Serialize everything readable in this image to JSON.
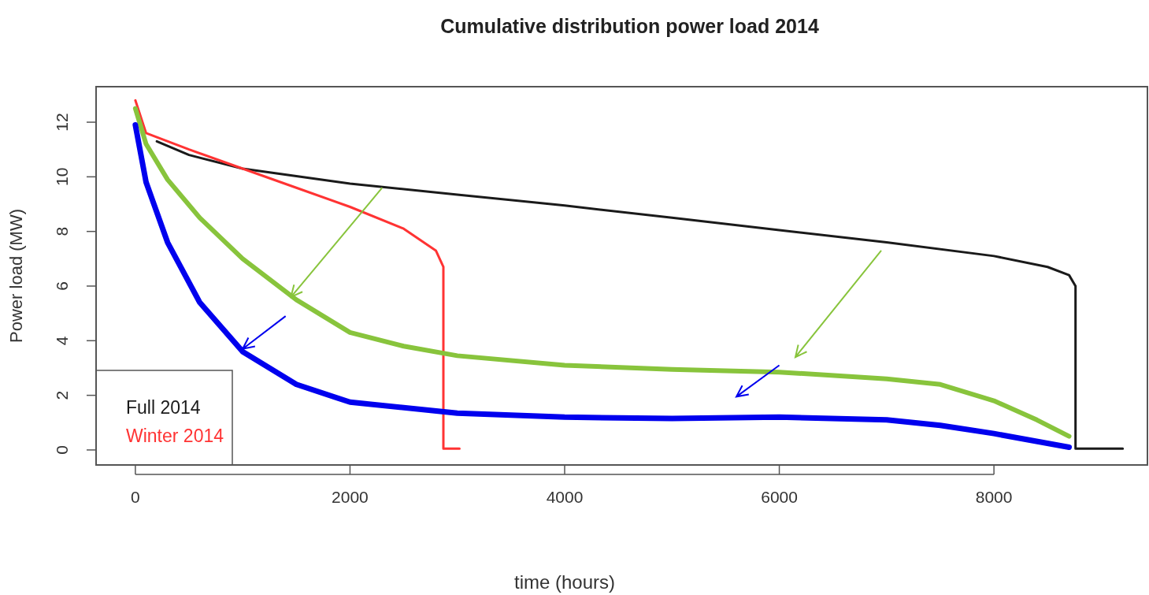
{
  "chart_data": {
    "type": "line",
    "title": "Cumulative distribution power load 2014",
    "xlabel": "time (hours)",
    "ylabel": "Power load (MW)",
    "xlim": [
      -366,
      9430
    ],
    "ylim": [
      -0.55,
      13.3
    ],
    "xticks": [
      0,
      2000,
      4000,
      6000,
      8000
    ],
    "yticks": [
      0,
      2,
      4,
      6,
      8,
      10,
      12
    ],
    "grid": false,
    "legend": "bottom left",
    "marker": "none",
    "line_style": "solid",
    "series": [
      {
        "name": "Full 2014",
        "color": "#1a1a1a",
        "x": [
          200,
          500,
          1000,
          2000,
          3000,
          4000,
          5000,
          6000,
          7000,
          8000,
          8500,
          8700,
          8760,
          8760,
          9200
        ],
        "values": [
          11.3,
          10.8,
          10.3,
          9.75,
          9.35,
          8.95,
          8.5,
          8.05,
          7.6,
          7.1,
          6.7,
          6.4,
          6.0,
          0.05,
          0.05
        ]
      },
      {
        "name": "Winter 2014",
        "color": "#ff3333",
        "x": [
          0,
          100,
          500,
          1000,
          1500,
          2000,
          2500,
          2800,
          2870,
          2870,
          3020
        ],
        "values": [
          12.8,
          11.6,
          11.0,
          10.3,
          9.6,
          8.9,
          8.1,
          7.3,
          6.7,
          0.05,
          0.05
        ]
      },
      {
        "color": "#88c43c",
        "x": [
          0,
          100,
          300,
          600,
          1000,
          1500,
          2000,
          2500,
          3000,
          4000,
          5000,
          6000,
          7000,
          7500,
          8000,
          8400,
          8700
        ],
        "values": [
          12.5,
          11.2,
          9.9,
          8.5,
          7.0,
          5.5,
          4.3,
          3.8,
          3.45,
          3.1,
          2.95,
          2.85,
          2.6,
          2.4,
          1.8,
          1.1,
          0.5
        ]
      },
      {
        "color": "#0000ee",
        "x": [
          0,
          100,
          300,
          600,
          1000,
          1500,
          2000,
          3000,
          4000,
          5000,
          6000,
          7000,
          7500,
          8000,
          8700
        ],
        "values": [
          11.9,
          9.8,
          7.6,
          5.4,
          3.6,
          2.4,
          1.75,
          1.35,
          1.2,
          1.15,
          1.2,
          1.1,
          0.9,
          0.6,
          0.1
        ]
      }
    ]
  }
}
